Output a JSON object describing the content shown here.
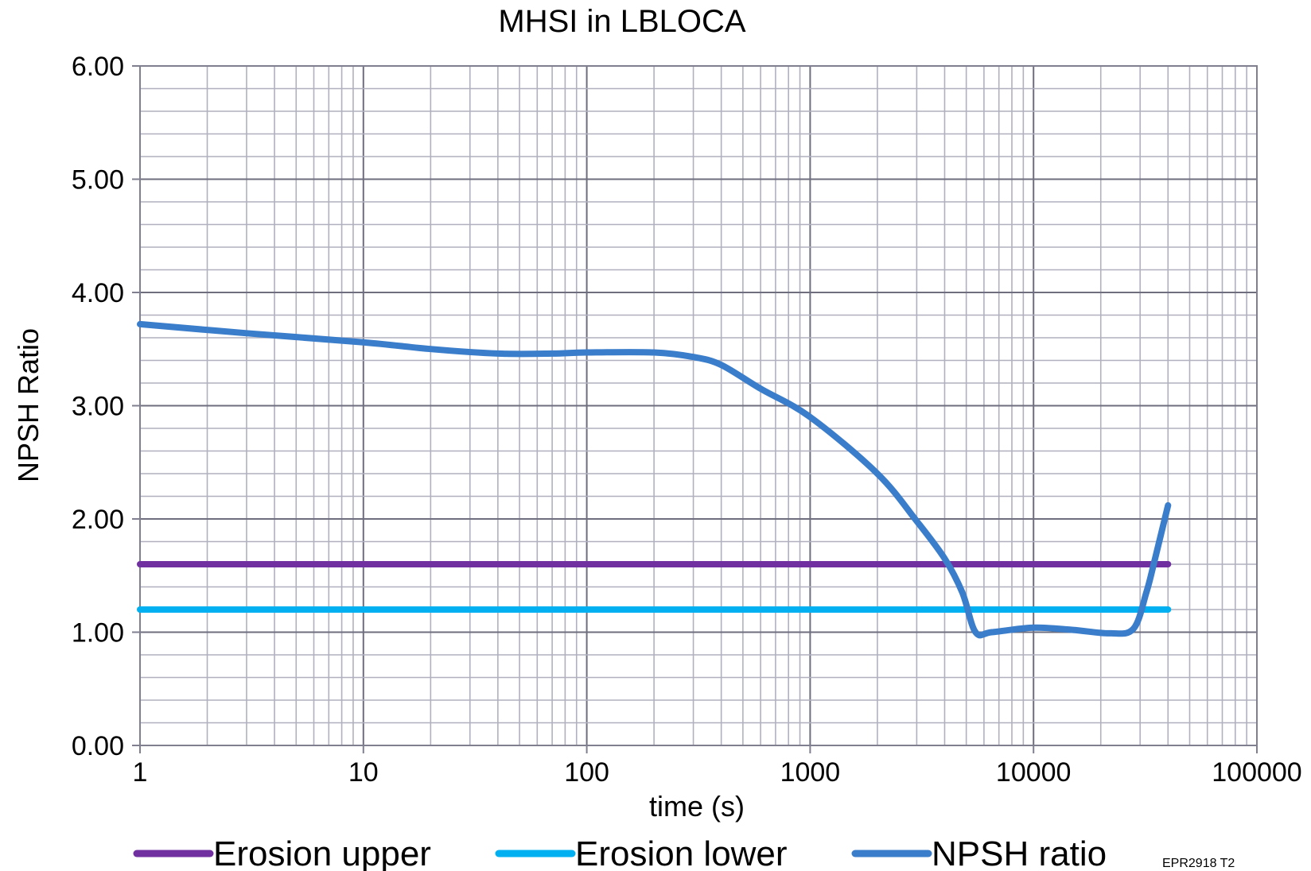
{
  "chart_data": {
    "type": "line",
    "title": "MHSI in LBLOCA",
    "xlabel": "time (s)",
    "ylabel": "NPSH Ratio",
    "xscale": "log",
    "xlim": [
      1,
      100000
    ],
    "ylim": [
      0,
      6
    ],
    "grid": true,
    "legend_position": "bottom",
    "x_tick_labels": [
      "1",
      "10",
      "100",
      "1000",
      "10000",
      "100000"
    ],
    "y_tick_labels": [
      "0.00",
      "1.00",
      "2.00",
      "3.00",
      "4.00",
      "5.00",
      "6.00"
    ],
    "series": [
      {
        "name": "Erosion upper",
        "color": "#7030a0",
        "points": [
          [
            1,
            1.6
          ],
          [
            40000,
            1.6
          ]
        ]
      },
      {
        "name": "Erosion lower",
        "color": "#00b0f0",
        "points": [
          [
            1,
            1.2
          ],
          [
            40000,
            1.2
          ]
        ]
      },
      {
        "name": "NPSH ratio",
        "color": "#3a7dca",
        "points": [
          [
            1,
            3.72
          ],
          [
            3,
            3.64
          ],
          [
            10,
            3.56
          ],
          [
            20,
            3.5
          ],
          [
            40,
            3.46
          ],
          [
            70,
            3.46
          ],
          [
            100,
            3.47
          ],
          [
            200,
            3.47
          ],
          [
            300,
            3.43
          ],
          [
            400,
            3.36
          ],
          [
            600,
            3.15
          ],
          [
            1000,
            2.9
          ],
          [
            2000,
            2.4
          ],
          [
            3000,
            1.98
          ],
          [
            4000,
            1.65
          ],
          [
            4800,
            1.35
          ],
          [
            5500,
            1.0
          ],
          [
            6500,
            1.0
          ],
          [
            10000,
            1.04
          ],
          [
            15000,
            1.02
          ],
          [
            22000,
            0.99
          ],
          [
            28000,
            1.03
          ],
          [
            32000,
            1.35
          ],
          [
            35000,
            1.65
          ],
          [
            40000,
            2.12
          ]
        ]
      }
    ]
  },
  "footnote": "EPR2918 T2"
}
